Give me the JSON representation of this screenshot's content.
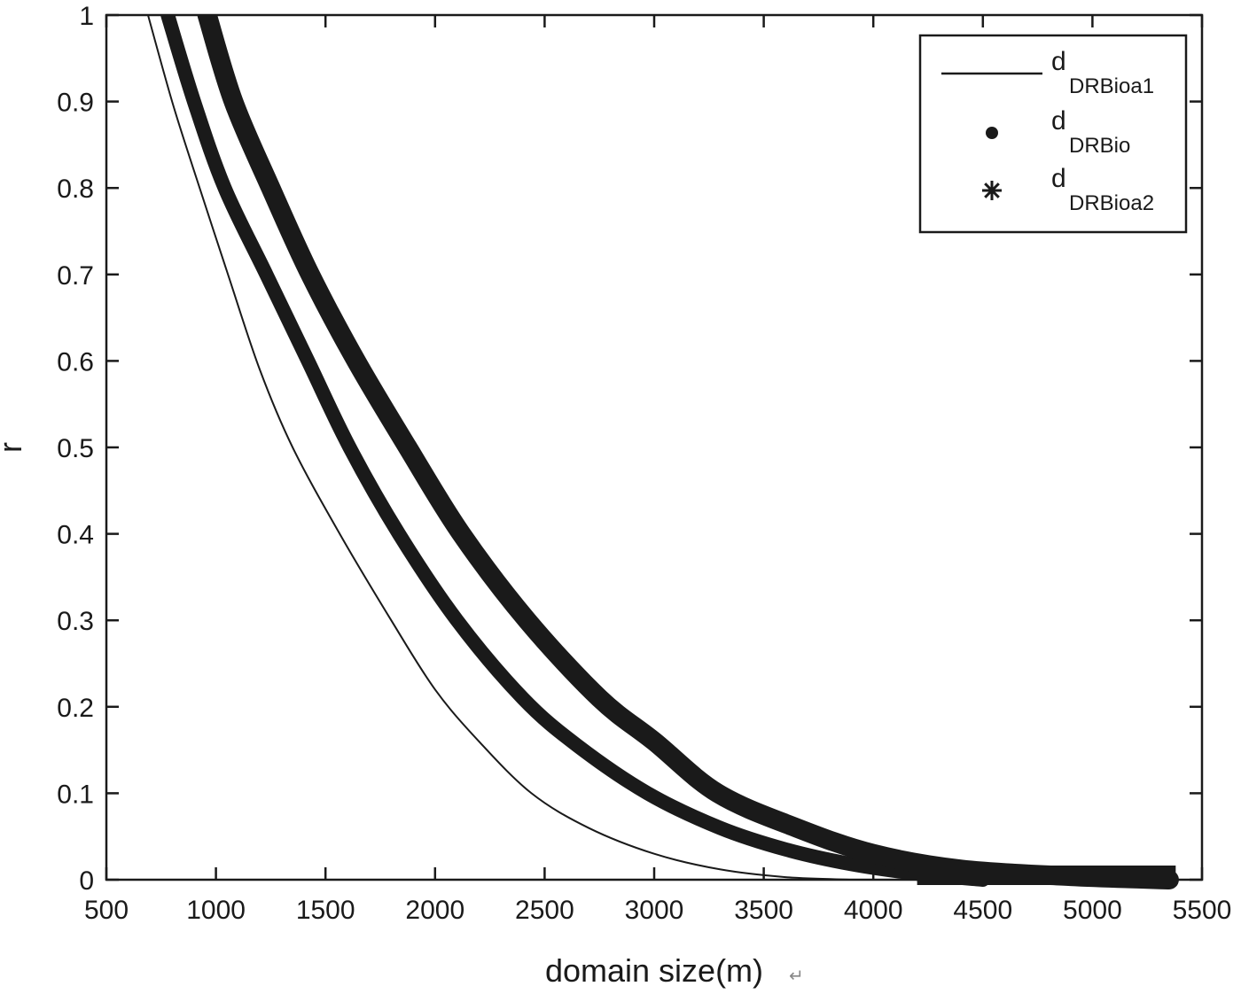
{
  "chart_data": {
    "type": "line",
    "title": "",
    "xlabel": "domain size(m)",
    "ylabel": "r",
    "xlim": [
      500,
      5500
    ],
    "ylim": [
      0,
      1
    ],
    "x_ticks": [
      500,
      1000,
      1500,
      2000,
      2500,
      3000,
      3500,
      4000,
      4500,
      5000,
      5500
    ],
    "y_ticks": [
      0,
      0.1,
      0.2,
      0.3,
      0.4,
      0.5,
      0.6,
      0.7,
      0.8,
      0.9,
      1
    ],
    "y_tick_labels": [
      "0",
      "0.1",
      "0.2",
      "0.3",
      "0.4",
      "0.5",
      "0.6",
      "0.7",
      "0.8",
      "0.9",
      "1"
    ],
    "grid": false,
    "legend_position": "upper right",
    "series": [
      {
        "name": "dDRBioa1",
        "label_main": "d",
        "label_sub": "DRBioa1",
        "marker": "line",
        "style": "thin solid line",
        "x": [
          690,
          800,
          900,
          1055,
          1200,
          1350,
          1565,
          1800,
          2000,
          2200,
          2440,
          2700,
          3000,
          3300,
          3600,
          3900
        ],
        "y": [
          1.0,
          0.9,
          0.82,
          0.7,
          0.59,
          0.5,
          0.4,
          0.3,
          0.22,
          0.16,
          0.1,
          0.06,
          0.03,
          0.012,
          0.003,
          0.0
        ]
      },
      {
        "name": "dDRBio",
        "label_main": "d",
        "label_sub": "DRBio",
        "marker": "dot",
        "style": "thick dotted band",
        "x": [
          780,
          900,
          1040,
          1230,
          1420,
          1610,
          1835,
          2100,
          2400,
          2650,
          2970,
          3300,
          3600,
          3900,
          4200,
          4500
        ],
        "y": [
          1.0,
          0.9,
          0.8,
          0.7,
          0.6,
          0.5,
          0.4,
          0.3,
          0.21,
          0.155,
          0.1,
          0.06,
          0.035,
          0.018,
          0.007,
          0.0
        ]
      },
      {
        "name": "dDRBioa2",
        "label_main": "d",
        "label_sub": "DRBioa2",
        "marker": "asterisk",
        "style": "thick asterisk band",
        "x": [
          960,
          1080,
          1250,
          1430,
          1640,
          1875,
          2120,
          2420,
          2750,
          3000,
          3290,
          3650,
          4000,
          4400,
          4900,
          5350
        ],
        "y": [
          1.0,
          0.9,
          0.8,
          0.7,
          0.6,
          0.5,
          0.4,
          0.3,
          0.21,
          0.16,
          0.1,
          0.06,
          0.03,
          0.012,
          0.004,
          0.0
        ]
      }
    ]
  },
  "axes": {
    "xlabel": "domain size(m)",
    "ylabel": "r",
    "xlabel_suffix": "↵"
  },
  "legend": {
    "items": [
      {
        "main": "d",
        "sub": "DRBioa1",
        "marker": "line"
      },
      {
        "main": "d",
        "sub": "DRBio",
        "marker": "dot"
      },
      {
        "main": "d",
        "sub": "DRBioa2",
        "marker": "asterisk"
      }
    ]
  },
  "colors": {
    "ink": "#1a1a1a",
    "background": "#ffffff"
  }
}
